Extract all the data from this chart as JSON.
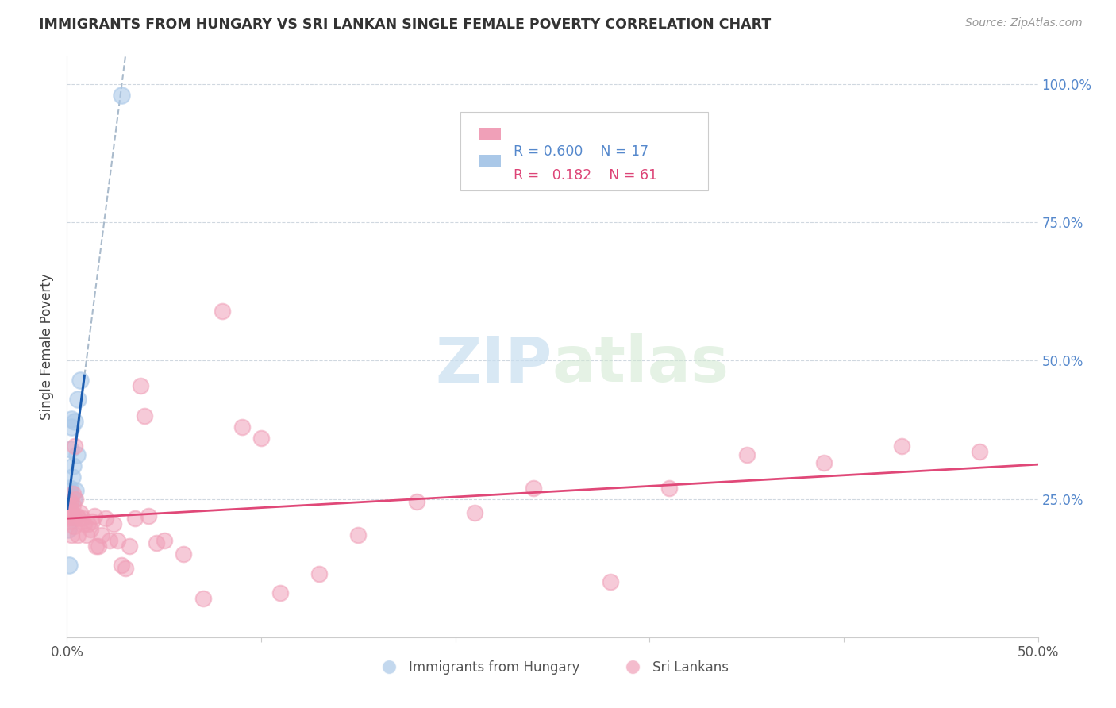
{
  "title": "IMMIGRANTS FROM HUNGARY VS SRI LANKAN SINGLE FEMALE POVERTY CORRELATION CHART",
  "source": "Source: ZipAtlas.com",
  "ylabel": "Single Female Poverty",
  "legend_hungary": "Immigrants from Hungary",
  "legend_srilanka": "Sri Lankans",
  "R_hungary": "0.600",
  "N_hungary": "17",
  "R_srilanka": "0.182",
  "N_srilanka": "61",
  "hungary_color": "#aac8e8",
  "hungary_line_color": "#1a5cb0",
  "srilanka_color": "#f0a0b8",
  "srilanka_line_color": "#e04878",
  "watermark_color": "#ccddf0",
  "xlim": [
    0,
    0.5
  ],
  "ylim": [
    0,
    1.05
  ],
  "hungary_x": [
    0.0008,
    0.001,
    0.0012,
    0.0015,
    0.0018,
    0.002,
    0.0022,
    0.0025,
    0.0028,
    0.003,
    0.0035,
    0.004,
    0.0045,
    0.005,
    0.0055,
    0.007,
    0.028
  ],
  "hungary_y": [
    0.195,
    0.13,
    0.265,
    0.27,
    0.255,
    0.34,
    0.38,
    0.395,
    0.29,
    0.31,
    0.25,
    0.39,
    0.265,
    0.33,
    0.43,
    0.465,
    0.98
  ],
  "srilanka_x": [
    0.0005,
    0.0008,
    0.001,
    0.0012,
    0.0014,
    0.0016,
    0.0018,
    0.002,
    0.0022,
    0.0025,
    0.0028,
    0.003,
    0.0032,
    0.0035,
    0.0038,
    0.004,
    0.0045,
    0.005,
    0.0055,
    0.006,
    0.007,
    0.008,
    0.009,
    0.01,
    0.011,
    0.012,
    0.013,
    0.014,
    0.015,
    0.016,
    0.018,
    0.02,
    0.022,
    0.024,
    0.026,
    0.028,
    0.03,
    0.032,
    0.035,
    0.038,
    0.04,
    0.042,
    0.046,
    0.05,
    0.06,
    0.07,
    0.08,
    0.09,
    0.1,
    0.11,
    0.13,
    0.15,
    0.18,
    0.21,
    0.24,
    0.28,
    0.31,
    0.35,
    0.39,
    0.43,
    0.47
  ],
  "srilanka_y": [
    0.235,
    0.215,
    0.225,
    0.22,
    0.21,
    0.235,
    0.245,
    0.22,
    0.225,
    0.185,
    0.22,
    0.24,
    0.26,
    0.2,
    0.215,
    0.345,
    0.25,
    0.22,
    0.185,
    0.215,
    0.225,
    0.215,
    0.205,
    0.185,
    0.205,
    0.195,
    0.21,
    0.22,
    0.165,
    0.165,
    0.185,
    0.215,
    0.175,
    0.205,
    0.175,
    0.13,
    0.125,
    0.165,
    0.215,
    0.455,
    0.4,
    0.22,
    0.17,
    0.175,
    0.15,
    0.07,
    0.59,
    0.38,
    0.36,
    0.08,
    0.115,
    0.185,
    0.245,
    0.225,
    0.27,
    0.1,
    0.27,
    0.33,
    0.315,
    0.345,
    0.335
  ]
}
